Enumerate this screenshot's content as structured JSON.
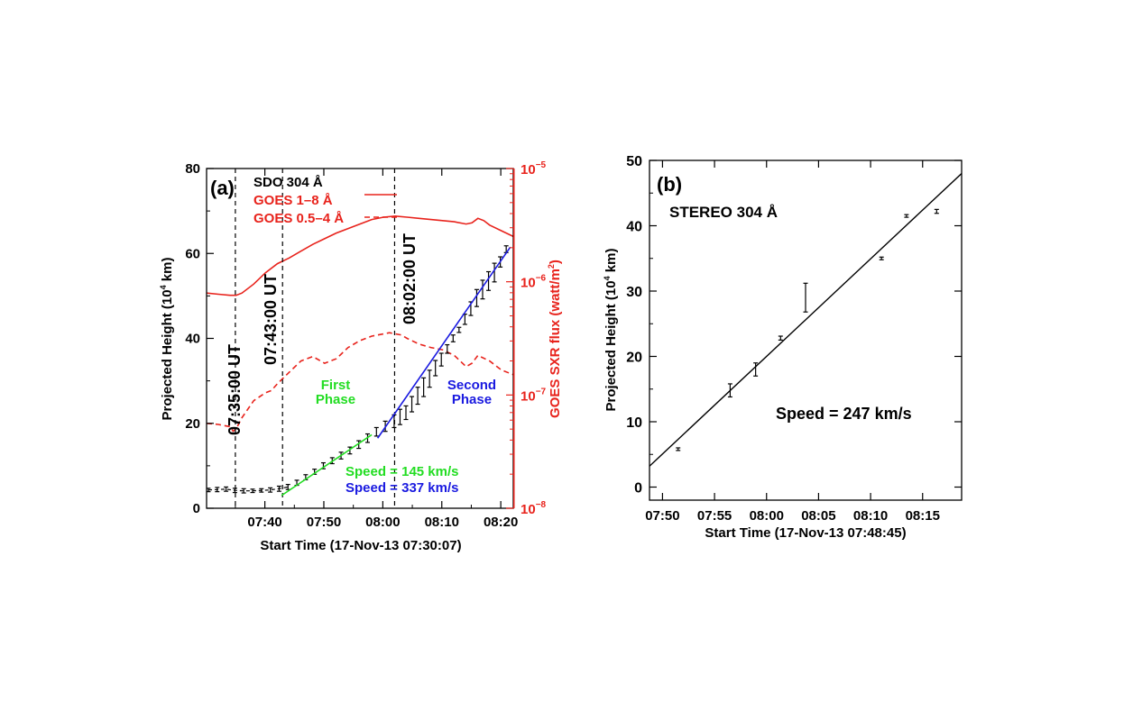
{
  "chart_data": [
    {
      "panel_label": "(a)",
      "type": "line",
      "xlabel": "Start Time (17-Nov-13 07:30:07)",
      "ylabel_left": "Projected Height (10",
      "ylabel_left_sup": "4",
      "ylabel_left_end": " km)",
      "ylabel_right": "GOES SXR flux (watt/m",
      "ylabel_right_sup": "2",
      "ylabel_right_end": ")",
      "x_unit": "minutes after 07:30:07",
      "xlim": [
        0,
        52
      ],
      "ylim_left": [
        0,
        80
      ],
      "ylim_right_log10": [
        -8,
        -5
      ],
      "x_ticks": [
        {
          "t": 9.88,
          "label": "07:40"
        },
        {
          "t": 19.88,
          "label": "07:50"
        },
        {
          "t": 29.88,
          "label": "08:00"
        },
        {
          "t": 39.88,
          "label": "08:10"
        },
        {
          "t": 49.88,
          "label": "08:20"
        }
      ],
      "y_ticks_left": [
        "0",
        "20",
        "40",
        "60",
        "80"
      ],
      "y_ticks_right": [
        {
          "exp": -8,
          "label": "10",
          "sup": "−8"
        },
        {
          "exp": -7,
          "label": "10",
          "sup": "−7"
        },
        {
          "exp": -6,
          "label": "10",
          "sup": "−6"
        },
        {
          "exp": -5,
          "label": "10",
          "sup": "−5"
        }
      ],
      "legend": [
        {
          "label": "SDO 304 Å",
          "color": "#000000",
          "style": "none"
        },
        {
          "label": "GOES 1–8 Å",
          "color": "#e8231c",
          "style": "solid"
        },
        {
          "label": "GOES 0.5–4 Å",
          "color": "#e8231c",
          "style": "dashed"
        }
      ],
      "vertical_lines": [
        {
          "t": 4.88,
          "label": "07:35:00 UT"
        },
        {
          "t": 12.88,
          "label": "07:43:00 UT"
        },
        {
          "t": 31.88,
          "label": "08:02:00 UT"
        }
      ],
      "phase_labels": [
        {
          "text": [
            "First",
            "Phase"
          ],
          "color": "#22dd22"
        },
        {
          "text": [
            "Second",
            "Phase"
          ],
          "color": "#1a1ae0"
        }
      ],
      "fits": [
        {
          "label": "Speed = 145 km/s",
          "color": "#22dd22",
          "t0": 12.7,
          "y0": 3.0,
          "t1": 28.0,
          "y1": 17.3
        },
        {
          "label": "Speed = 337 km/s",
          "color": "#1a1ae0",
          "t0": 29.0,
          "y0": 16.5,
          "t1": 51.5,
          "y1": 61.5
        }
      ],
      "series": [
        {
          "name": "SDO 304 Å",
          "color": "#000000",
          "t": [
            0.3,
            1.8,
            3.3,
            4.8,
            6.3,
            7.8,
            9.3,
            10.8,
            12.3,
            13.8,
            15.3,
            16.8,
            18.3,
            19.8,
            21.3,
            22.8,
            24.3,
            25.8,
            27.3,
            28.8,
            30.3,
            31.8,
            32.8,
            33.8,
            34.8,
            35.8,
            36.8,
            37.8,
            38.8,
            39.8,
            40.8,
            41.8,
            42.8,
            43.8,
            44.8,
            45.8,
            46.8,
            47.8,
            48.8,
            49.8,
            50.8
          ],
          "y": [
            4.3,
            4.4,
            4.5,
            4.2,
            4.1,
            4.1,
            4.2,
            4.3,
            4.6,
            5.0,
            6.0,
            7.3,
            8.6,
            10.0,
            11.2,
            12.4,
            13.6,
            15.0,
            16.5,
            18.0,
            19.3,
            20.5,
            21.5,
            22.5,
            24.5,
            26.5,
            28.5,
            30.5,
            33.0,
            35.0,
            37.5,
            40.0,
            42.0,
            44.5,
            47.0,
            49.5,
            51.5,
            53.5,
            55.5,
            58.0,
            61.0
          ],
          "err": [
            0.4,
            0.5,
            0.5,
            0.5,
            0.5,
            0.4,
            0.4,
            0.5,
            0.6,
            0.6,
            0.6,
            0.6,
            0.6,
            0.7,
            0.7,
            0.8,
            0.8,
            0.9,
            1.0,
            1.0,
            1.2,
            1.5,
            1.8,
            1.6,
            1.8,
            2.0,
            2.2,
            2.0,
            1.8,
            1.5,
            1.0,
            0.8,
            0.6,
            1.2,
            1.6,
            2.0,
            2.2,
            2.2,
            2.2,
            1.2,
            0.8
          ]
        },
        {
          "name": "GOES 1–8 Å",
          "color": "#e8231c",
          "t": [
            0,
            2,
            4,
            5,
            6,
            8,
            10,
            12,
            14,
            16,
            18,
            20,
            22,
            24,
            26,
            28,
            30,
            32,
            34,
            36,
            38,
            40,
            42,
            44,
            45,
            46,
            47,
            48,
            50,
            52
          ],
          "log10_flux": [
            -6.1,
            -6.11,
            -6.12,
            -6.12,
            -6.1,
            -6.02,
            -5.92,
            -5.84,
            -5.79,
            -5.73,
            -5.67,
            -5.62,
            -5.57,
            -5.53,
            -5.49,
            -5.45,
            -5.43,
            -5.42,
            -5.43,
            -5.44,
            -5.45,
            -5.46,
            -5.47,
            -5.49,
            -5.48,
            -5.44,
            -5.46,
            -5.5,
            -5.55,
            -5.6
          ]
        },
        {
          "name": "GOES 0.5–4 Å",
          "color": "#e8231c",
          "t": [
            0,
            2,
            4,
            4.5,
            5,
            6,
            8,
            10,
            11,
            12,
            13,
            14,
            16,
            18,
            20,
            22,
            24,
            26,
            28,
            30,
            31,
            32,
            33,
            34,
            36,
            38,
            40,
            42,
            44,
            45,
            46,
            48,
            50,
            52
          ],
          "log10_flux": [
            -7.25,
            -7.26,
            -7.28,
            -7.32,
            -7.3,
            -7.2,
            -7.05,
            -6.98,
            -6.96,
            -6.9,
            -6.85,
            -6.8,
            -6.7,
            -6.66,
            -6.72,
            -6.68,
            -6.58,
            -6.52,
            -6.48,
            -6.46,
            -6.45,
            -6.46,
            -6.47,
            -6.5,
            -6.55,
            -6.58,
            -6.6,
            -6.65,
            -6.75,
            -6.72,
            -6.65,
            -6.7,
            -6.78,
            -6.82
          ]
        }
      ]
    },
    {
      "panel_label": "(b)",
      "type": "scatter",
      "title": "STEREO 304 Å",
      "xlabel": "Start Time (17-Nov-13 07:48:45)",
      "ylabel": "Projected Height (10",
      "ylabel_sup": "4",
      "ylabel_end": " km)",
      "x_unit": "minutes after 07:48:45",
      "xlim": [
        0,
        30
      ],
      "ylim": [
        -2,
        50
      ],
      "x_ticks": [
        {
          "t": 1.25,
          "label": "07:50"
        },
        {
          "t": 6.25,
          "label": "07:55"
        },
        {
          "t": 11.25,
          "label": "08:00"
        },
        {
          "t": 16.25,
          "label": "08:05"
        },
        {
          "t": 21.25,
          "label": "08:10"
        },
        {
          "t": 26.25,
          "label": "08:15"
        }
      ],
      "y_ticks": [
        "0",
        "10",
        "20",
        "30",
        "40",
        "50"
      ],
      "fit": {
        "label": "Speed = 247 km/s",
        "color": "#000000",
        "t0": 0,
        "y0": 3.2,
        "t1": 30,
        "y1": 48.0
      },
      "series": [
        {
          "name": "STEREO 304 Å",
          "color": "#000000",
          "t": [
            2.75,
            7.75,
            10.2,
            12.6,
            15.0,
            22.3,
            24.7,
            27.6
          ],
          "y": [
            5.8,
            14.8,
            18.0,
            22.8,
            29.0,
            35.0,
            41.5,
            42.2
          ],
          "err": [
            0.2,
            1.0,
            1.0,
            0.3,
            2.2,
            0.2,
            0.2,
            0.3
          ]
        }
      ]
    }
  ]
}
